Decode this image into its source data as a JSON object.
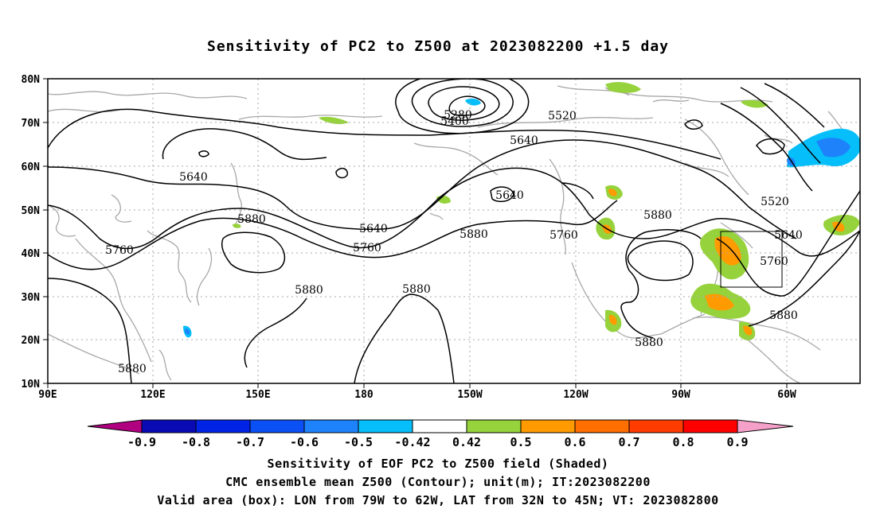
{
  "title": "Sensitivity of PC2 to Z500 at 2023082200 +1.5 day",
  "lat_labels": [
    "80N",
    "70N",
    "60N",
    "50N",
    "40N",
    "30N",
    "20N",
    "10N"
  ],
  "lon_labels": [
    "90E",
    "120E",
    "150E",
    "180",
    "150W",
    "120W",
    "90W",
    "60W"
  ],
  "contour_labels": [
    "5280",
    "5400",
    "5520",
    "5640",
    "5640",
    "5640",
    "5640",
    "5760",
    "5760",
    "5760",
    "5760",
    "5520",
    "5640",
    "5880",
    "5880",
    "5880",
    "5880",
    "5880",
    "5880",
    "5880",
    "5880"
  ],
  "colorbar": {
    "labels": [
      "-0.9",
      "-0.8",
      "-0.7",
      "-0.6",
      "-0.5",
      "-0.42",
      "0.42",
      "0.5",
      "0.6",
      "0.7",
      "0.8",
      "0.9"
    ],
    "colors": [
      "#b0007f",
      "#0a0ab4",
      "#0023e6",
      "#0a50f5",
      "#1e82fa",
      "#05befa",
      "#ffffff",
      "#96d23c",
      "#ff9b00",
      "#ff6e00",
      "#ff3c00",
      "#ff0000",
      "#f5a0c8"
    ]
  },
  "footer": {
    "line1": "Sensitivity of EOF PC2 to Z500 field (Shaded)",
    "line2": "CMC ensemble mean Z500 (Contour); unit(m); IT:2023082200",
    "line3": "Valid area (box): LON from 79W to 62W, LAT from 32N to 45N; VT: 2023082800"
  }
}
